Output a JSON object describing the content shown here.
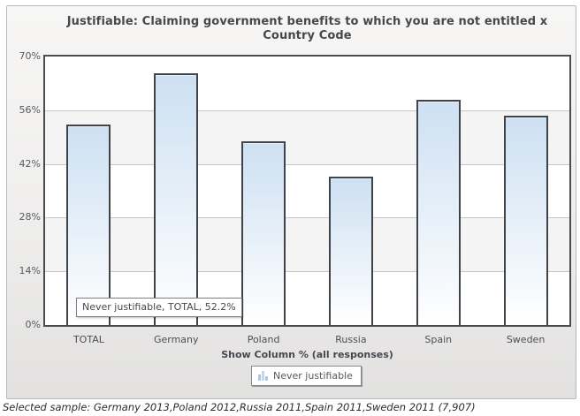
{
  "header": {
    "title": "Justifiable: Claiming government benefits to which you are not entitled x Country Code"
  },
  "chart_data": {
    "type": "bar",
    "title": "Justifiable: Claiming government benefits to which you are not entitled x Country Code",
    "categories": [
      "TOTAL",
      "Germany",
      "Poland",
      "Russia",
      "Spain",
      "Sweden"
    ],
    "series": [
      {
        "name": "Never justifiable",
        "values": [
          52.2,
          65.7,
          47.8,
          38.8,
          58.8,
          54.5
        ]
      }
    ],
    "xlabel": "Show Column % (all responses)",
    "ylabel": "",
    "ylim": [
      0,
      70
    ],
    "ytick_step": 14,
    "ytick_labels": [
      "0%",
      "14%",
      "28%",
      "42%",
      "56%",
      "70%"
    ],
    "grid": "horizontal-bands",
    "legend_position": "bottom"
  },
  "tooltip": {
    "text": "Never justifiable, TOTAL, 52.2%"
  },
  "legend": {
    "label": "Never justifiable"
  },
  "footer": {
    "text": "Selected sample: Germany 2013,Poland 2012,Russia 2011,Spain 2011,Sweden 2011 (7,907)"
  },
  "colors": {
    "bar_gradient_top": "#cde0f2",
    "bar_gradient_bottom": "#ffffff",
    "bar_border": "#404348",
    "band_alt": "#f4f4f4",
    "band_main": "#ffffff",
    "gridline": "#c6c6c6",
    "plot_border": "#494b4e",
    "legend_icon_bar": "#aac6e2",
    "legend_icon_bar_light": "#c3d7eb"
  }
}
